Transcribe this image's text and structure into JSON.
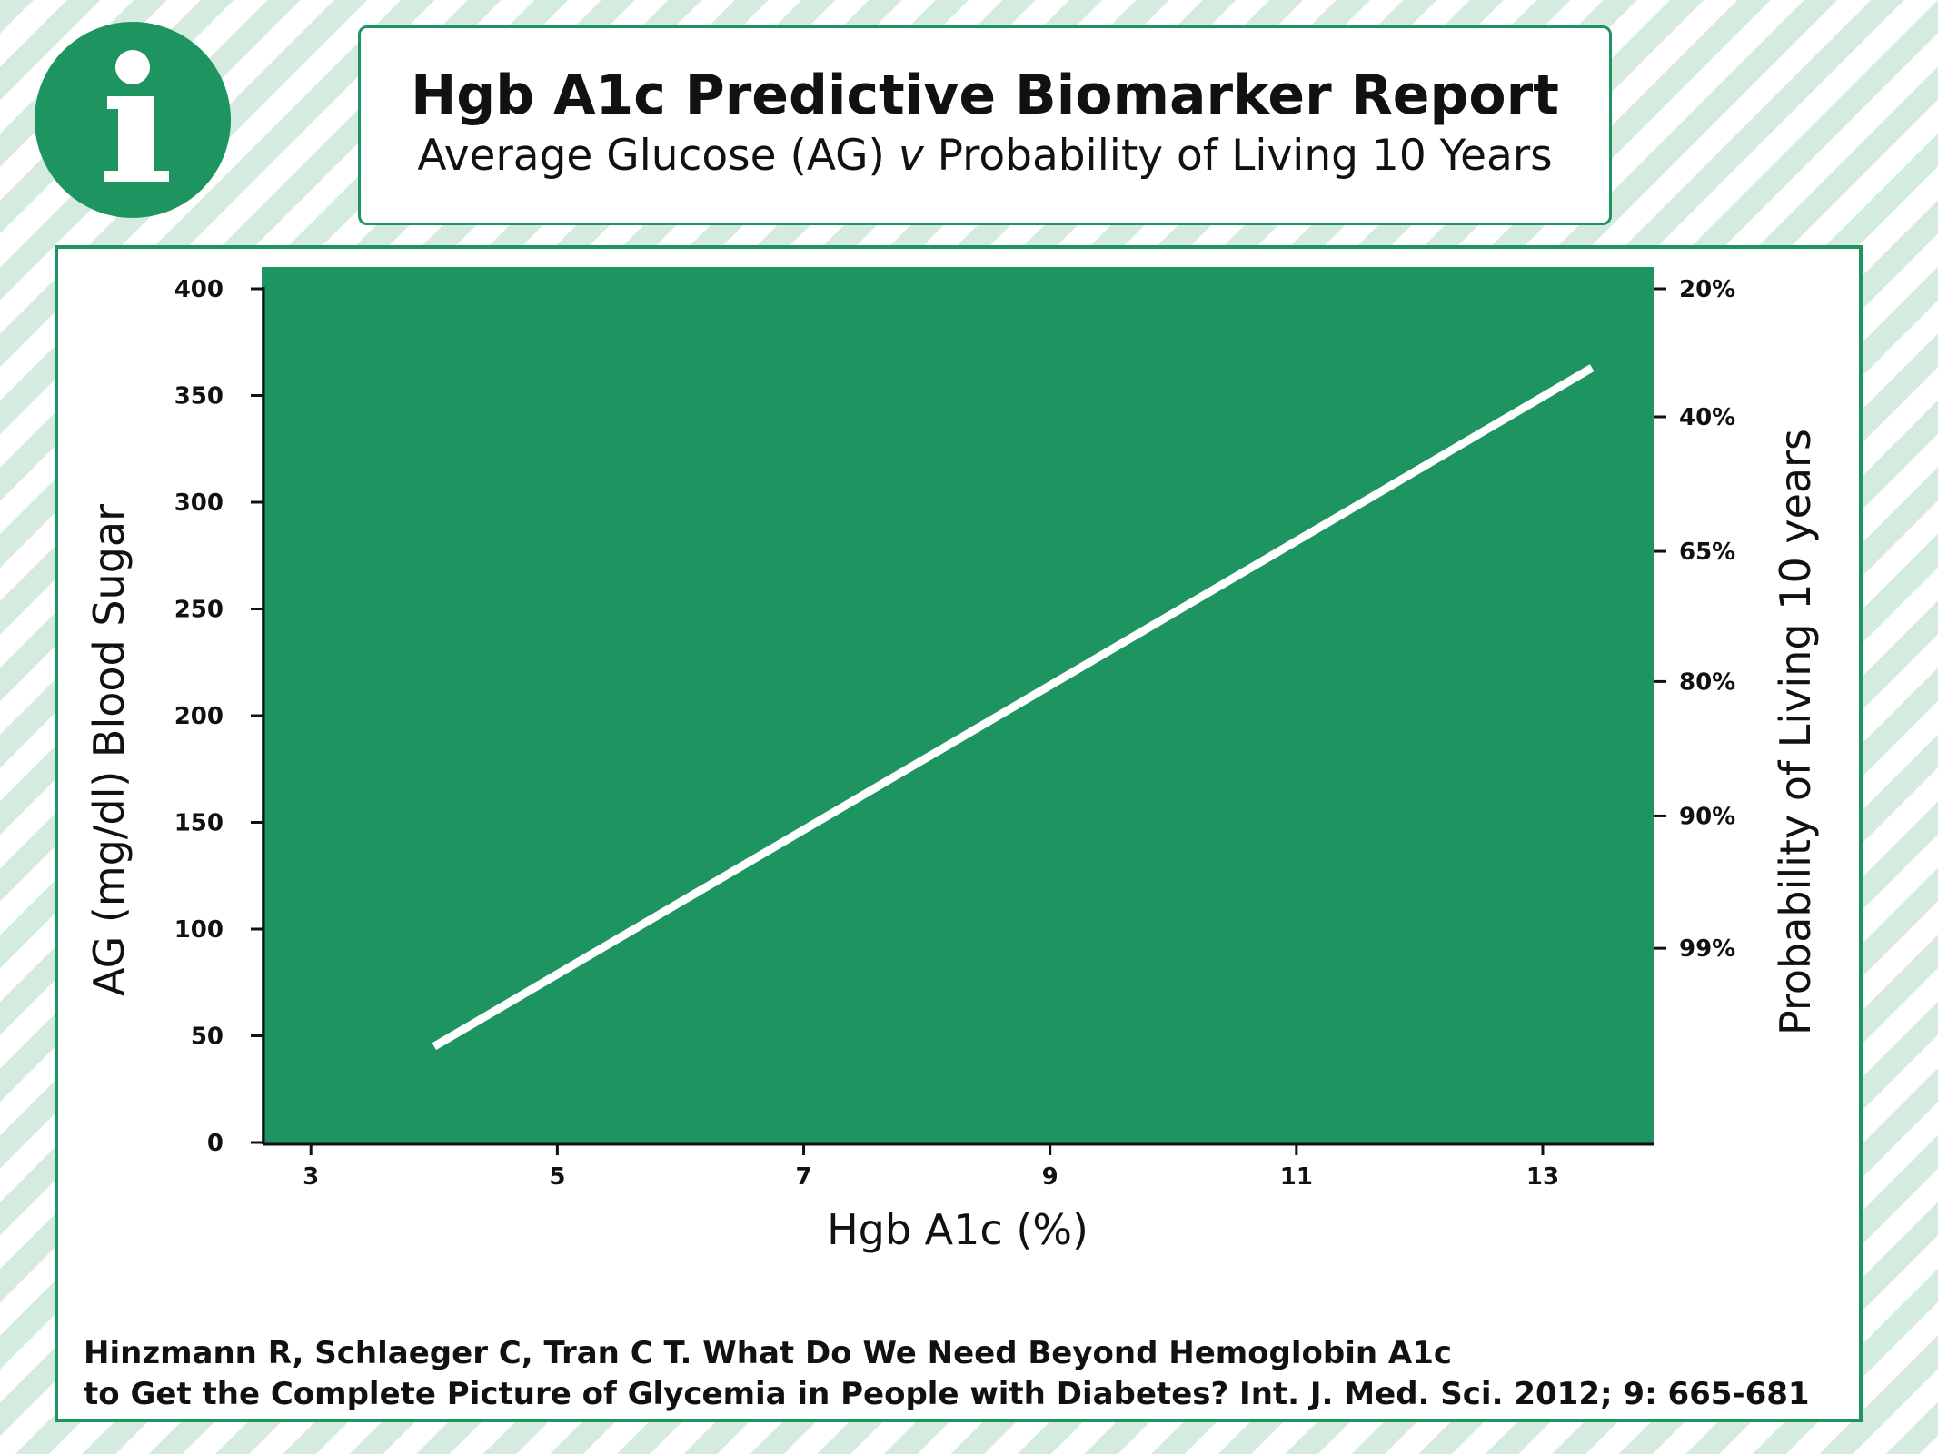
{
  "header": {
    "title": "Hgb A1c Predictive Biomarker Report",
    "subtitle_prefix": "Average Glucose (AG) ",
    "subtitle_italic": "v",
    "subtitle_suffix": " Probability of Living 10 Years",
    "info_icon": "info-icon"
  },
  "citation": {
    "line1": "Hinzmann R, Schlaeger C, Tran C T. What Do We Need Beyond Hemoglobin A1c",
    "line2": "to Get the Complete Picture of Glycemia in People with Diabetes? Int. J. Med. Sci. 2012; 9: 665-681"
  },
  "colors": {
    "plot_background": "#1e9460",
    "line": "#ffffff",
    "border": "#1e9460",
    "stripe": "#d6ebe0"
  },
  "chart_data": {
    "type": "line",
    "title": "Hgb A1c Predictive Biomarker Report",
    "subtitle": "Average Glucose (AG) v Probability of Living 10 Years",
    "xlabel": "Hgb A1c (%)",
    "ylabel": "AG (mg/dl) Blood Sugar",
    "y2label": "Probability of Living 10 years",
    "x_ticks": [
      3,
      5,
      7,
      9,
      11,
      13
    ],
    "y_ticks": [
      0,
      50,
      100,
      150,
      200,
      250,
      300,
      350,
      400
    ],
    "y2_ticks": [
      {
        "label": "20%",
        "ag": 400
      },
      {
        "label": "40%",
        "ag": 340
      },
      {
        "label": "65%",
        "ag": 277
      },
      {
        "label": "80%",
        "ag": 216
      },
      {
        "label": "90%",
        "ag": 153
      },
      {
        "label": "99%",
        "ag": 91
      }
    ],
    "xlim": [
      2.6,
      13.9
    ],
    "ylim": [
      0,
      400
    ],
    "series": [
      {
        "x": [
          4,
          13.4
        ],
        "y": [
          45,
          363
        ]
      }
    ],
    "grid": false,
    "legend": "none"
  }
}
